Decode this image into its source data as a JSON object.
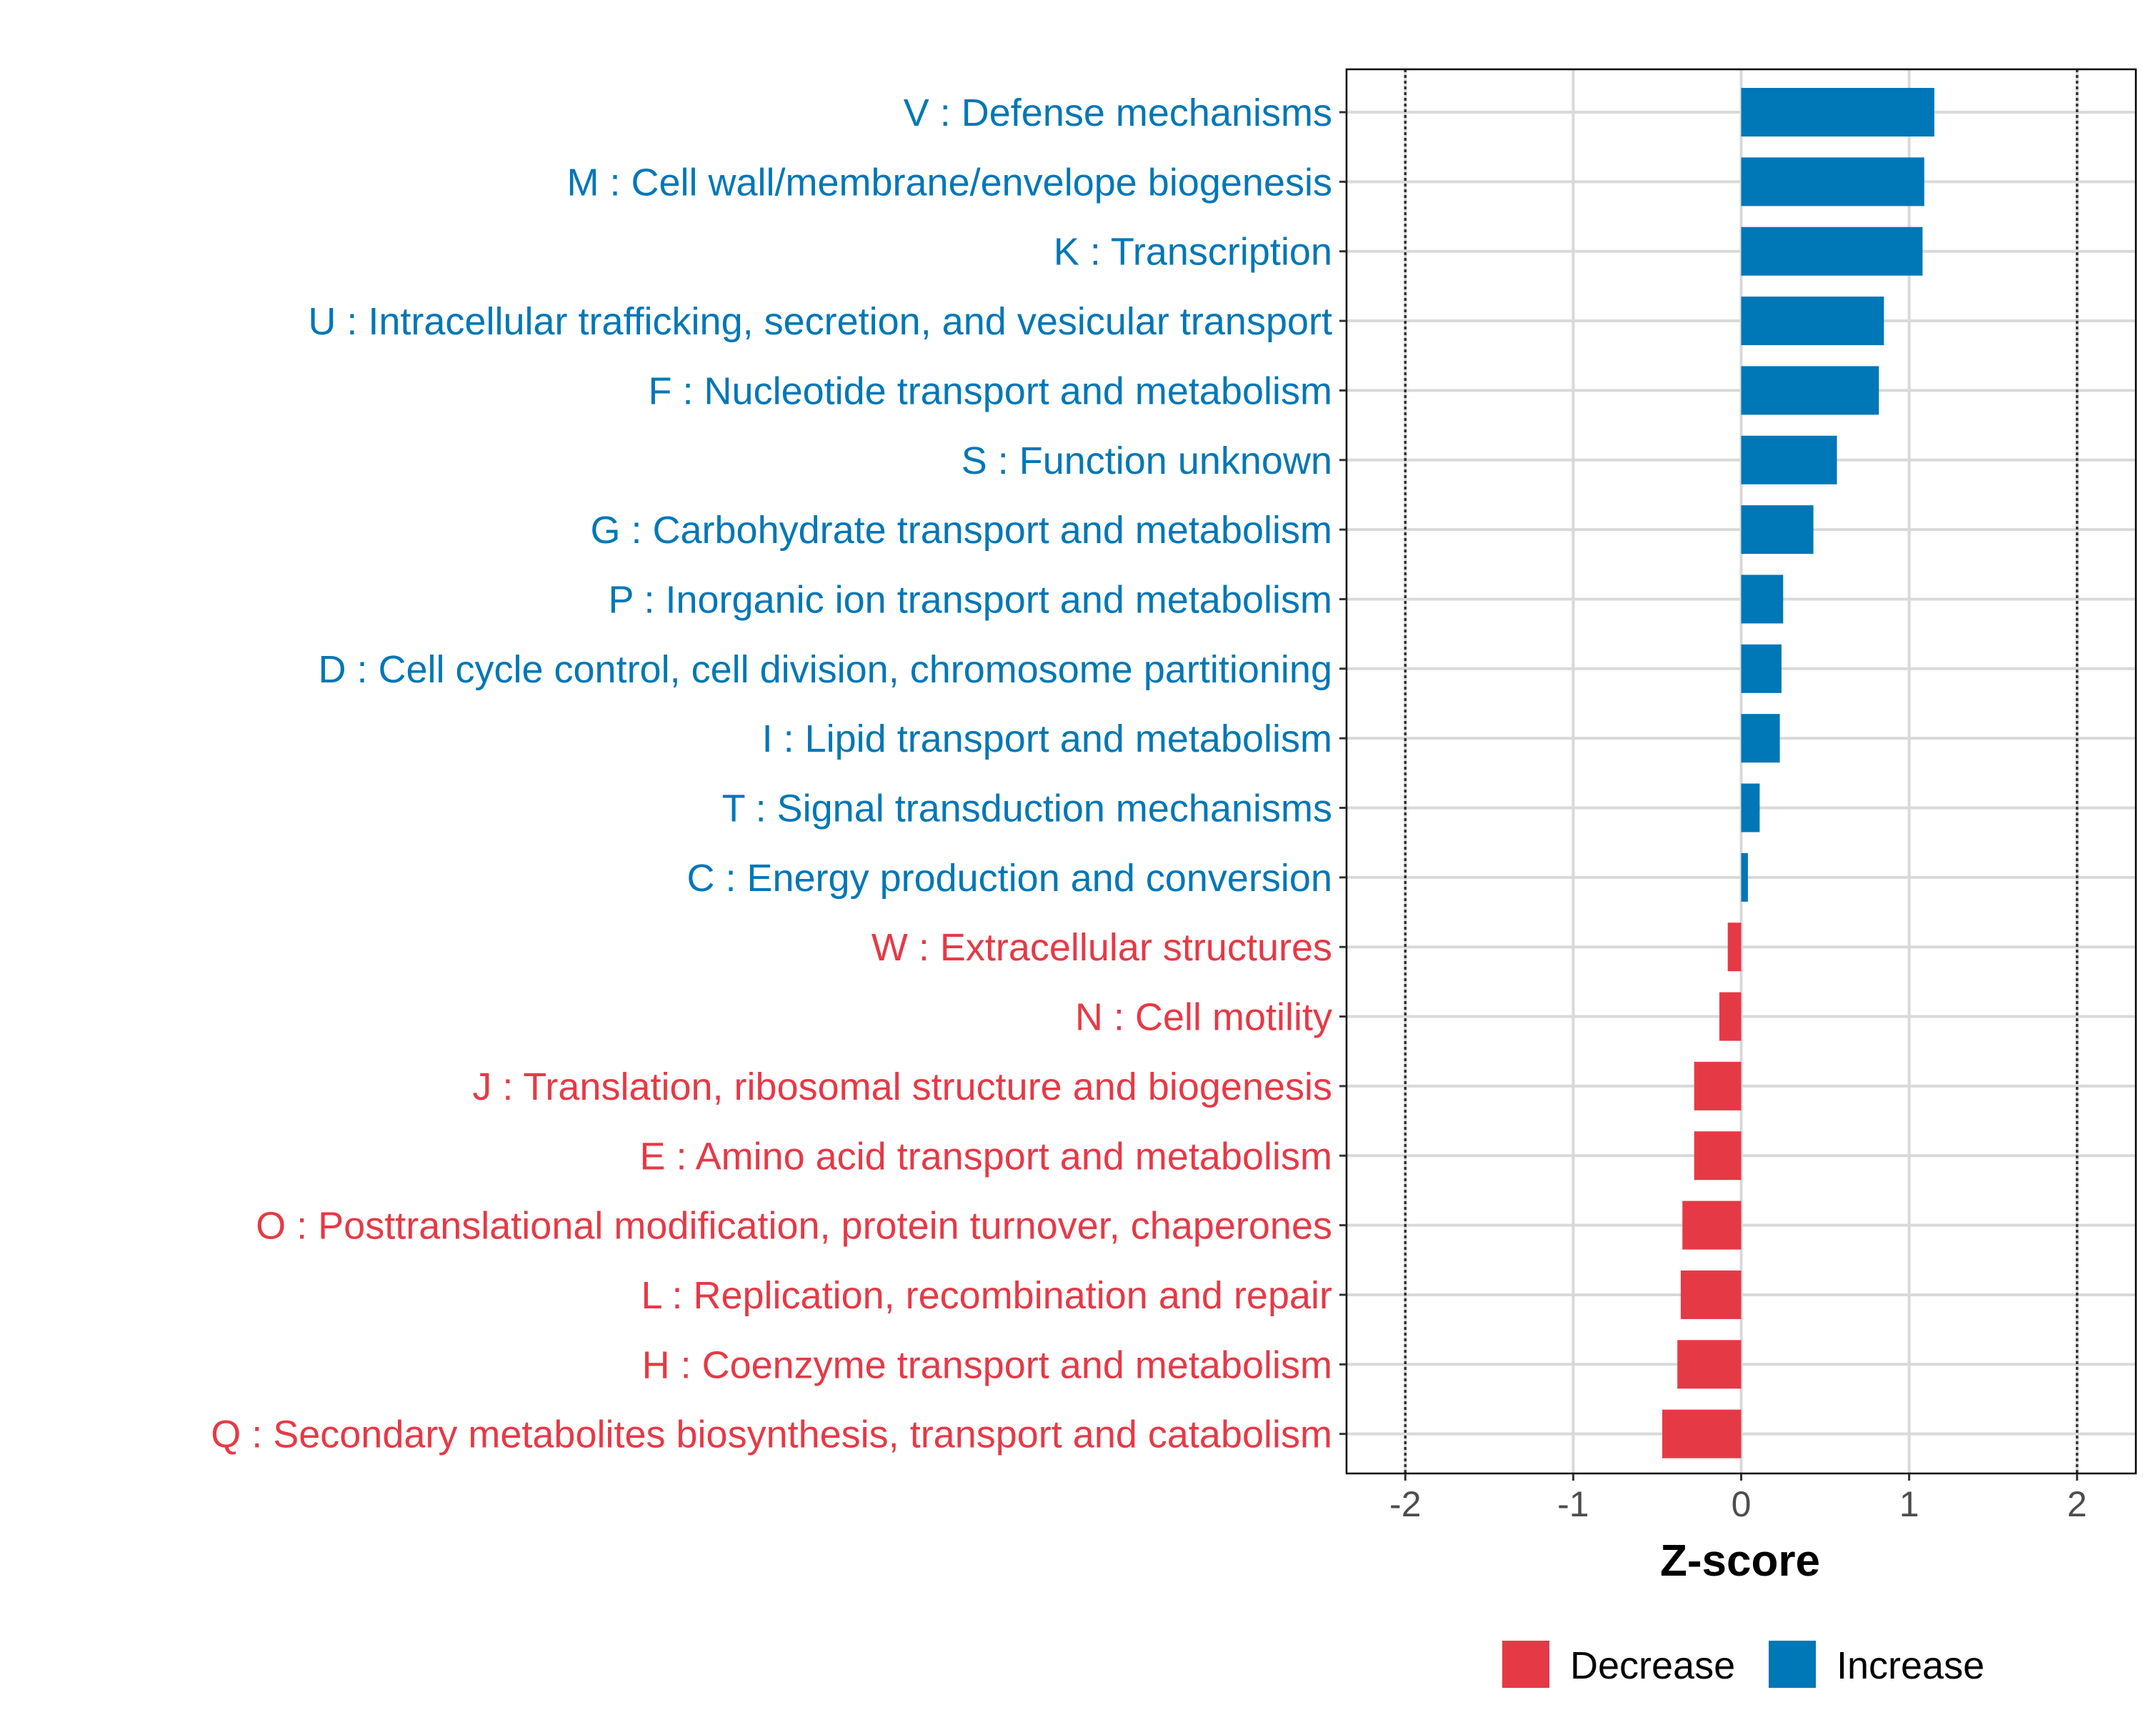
{
  "chart_data": {
    "type": "bar",
    "orientation": "horizontal",
    "title": "",
    "xlabel": "Z-score",
    "ylabel": "",
    "xlim": [
      -2.35,
      2.35
    ],
    "xticks": [
      -2,
      -1,
      0,
      1,
      2
    ],
    "xtick_labels": [
      "-2",
      "-1",
      "0",
      "1",
      "2"
    ],
    "reference_lines": [
      -2,
      2
    ],
    "grid": true,
    "legend": {
      "position": "bottom",
      "entries": [
        {
          "label": "Decrease",
          "color": "#e63946"
        },
        {
          "label": "Increase",
          "color": "#0077b6"
        }
      ]
    },
    "categories": [
      "V : Defense mechanisms",
      "M : Cell wall/membrane/envelope biogenesis",
      "K : Transcription",
      "U : Intracellular trafficking, secretion, and vesicular transport",
      "F : Nucleotide transport and metabolism",
      "S : Function unknown",
      "G : Carbohydrate transport and metabolism",
      "P : Inorganic ion transport and metabolism",
      "D : Cell cycle control, cell division, chromosome partitioning",
      "I : Lipid transport and metabolism",
      "T : Signal transduction mechanisms",
      "C : Energy production and conversion",
      "W : Extracellular structures",
      "N : Cell motility",
      "J : Translation, ribosomal structure and biogenesis",
      "E : Amino acid transport and metabolism",
      "O : Posttranslational modification, protein turnover, chaperones",
      "L : Replication, recombination and repair",
      "H : Coenzyme transport and metabolism",
      "Q : Secondary metabolites biosynthesis, transport and catabolism"
    ],
    "values": [
      1.15,
      1.09,
      1.08,
      0.85,
      0.82,
      0.57,
      0.43,
      0.25,
      0.24,
      0.23,
      0.11,
      0.04,
      -0.08,
      -0.13,
      -0.28,
      -0.28,
      -0.35,
      -0.36,
      -0.38,
      -0.47
    ],
    "colors": {
      "increase": "#0077b6",
      "decrease": "#e63946"
    }
  }
}
